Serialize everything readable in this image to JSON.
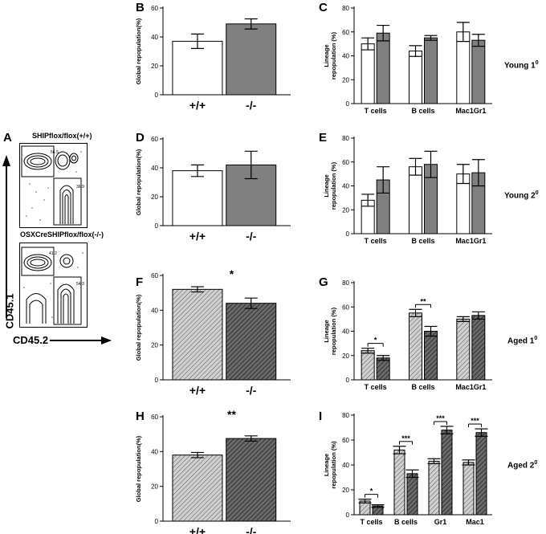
{
  "colors": {
    "wt": "#ffffff",
    "ko": "#808080",
    "aged_wt": "#c8c8c8",
    "aged_ko": "#585858",
    "stroke": "#000000"
  },
  "flow": {
    "label": "A",
    "top_title": "SHIPflox/flox(+/+)",
    "bottom_title": "OSXCreSHIPflox/flox(-/-)",
    "top_gates": [
      "56.5",
      "36.9"
    ],
    "bottom_gates": [
      "41.2",
      "54.3"
    ],
    "y_axis": "CD45.1",
    "x_axis": "CD45.2"
  },
  "side_labels": {
    "young1": "Young 1",
    "young2": "Young 2",
    "aged1": "Aged 1",
    "aged2": "Aged 2",
    "superscript": "0"
  },
  "chart_data": [
    {
      "id": "B",
      "type": "bar",
      "title": "",
      "ylabel": "Global repopulation(%)",
      "xlabel": "",
      "ylim": [
        0,
        60
      ],
      "yticks": [
        0,
        20,
        40,
        60
      ],
      "categories": [
        "+/+",
        "-/-"
      ],
      "values": [
        37,
        49
      ],
      "errors": [
        5,
        3.5
      ],
      "fill": [
        "wt",
        "ko"
      ],
      "significance": ""
    },
    {
      "id": "C",
      "type": "bar",
      "title": "",
      "ylabel": "Lineage repopulation (%)",
      "xlabel": "",
      "ylim": [
        0,
        80
      ],
      "yticks": [
        0,
        20,
        40,
        60,
        80
      ],
      "categories": [
        "T cells",
        "B cells",
        "Mac1Gr1"
      ],
      "series": [
        {
          "name": "+/+",
          "fill": "wt",
          "values": [
            50,
            44,
            60
          ],
          "errors": [
            5,
            4.5,
            8
          ]
        },
        {
          "name": "-/-",
          "fill": "ko",
          "values": [
            59,
            55,
            53
          ],
          "errors": [
            6.5,
            2,
            5
          ]
        }
      ],
      "brackets": []
    },
    {
      "id": "D",
      "type": "bar",
      "title": "",
      "ylabel": "Global repopulation(%)",
      "xlabel": "",
      "ylim": [
        0,
        60
      ],
      "yticks": [
        0,
        20,
        40,
        60
      ],
      "categories": [
        "+/+",
        "-/-"
      ],
      "values": [
        38,
        42
      ],
      "errors": [
        4,
        9.5
      ],
      "fill": [
        "wt",
        "ko"
      ],
      "significance": ""
    },
    {
      "id": "E",
      "type": "bar",
      "title": "",
      "ylabel": "Lineage repopulation (%)",
      "xlabel": "",
      "ylim": [
        0,
        80
      ],
      "yticks": [
        0,
        20,
        40,
        60,
        80
      ],
      "categories": [
        "T cells",
        "B cells",
        "Mac1Gr1"
      ],
      "series": [
        {
          "name": "+/+",
          "fill": "wt",
          "values": [
            28,
            56,
            50
          ],
          "errors": [
            5,
            7,
            8
          ]
        },
        {
          "name": "-/-",
          "fill": "ko",
          "values": [
            45,
            58,
            51
          ],
          "errors": [
            11,
            11,
            11
          ]
        }
      ],
      "brackets": []
    },
    {
      "id": "F",
      "type": "bar",
      "title": "",
      "ylabel": "Global repopulation(%)",
      "xlabel": "",
      "ylim": [
        0,
        60
      ],
      "yticks": [
        0,
        20,
        40,
        60
      ],
      "categories": [
        "+/+",
        "-/-"
      ],
      "values": [
        52,
        44
      ],
      "errors": [
        1.5,
        3
      ],
      "fill": [
        "aged_wt",
        "aged_ko"
      ],
      "significance": "*"
    },
    {
      "id": "G",
      "type": "bar",
      "title": "",
      "ylabel": "Lineage repopulation (%)",
      "xlabel": "",
      "ylim": [
        0,
        80
      ],
      "yticks": [
        0,
        20,
        40,
        60,
        80
      ],
      "categories": [
        "T cells",
        "B cells",
        "Mac1Gr1"
      ],
      "series": [
        {
          "name": "+/+",
          "fill": "aged_wt",
          "values": [
            24,
            55,
            50
          ],
          "errors": [
            2,
            3,
            2
          ]
        },
        {
          "name": "-/-",
          "fill": "aged_ko",
          "values": [
            18,
            40,
            53
          ],
          "errors": [
            2,
            4,
            3
          ]
        }
      ],
      "brackets": [
        {
          "group": 0,
          "label": "*"
        },
        {
          "group": 1,
          "label": "**"
        }
      ]
    },
    {
      "id": "H",
      "type": "bar",
      "title": "",
      "ylabel": "Global repopulation(%)",
      "xlabel": "",
      "ylim": [
        0,
        60
      ],
      "yticks": [
        0,
        20,
        40,
        60
      ],
      "categories": [
        "+/+",
        "-/-"
      ],
      "values": [
        38,
        47.5
      ],
      "errors": [
        1.5,
        1.5
      ],
      "fill": [
        "aged_wt",
        "aged_ko"
      ],
      "significance": "**"
    },
    {
      "id": "I",
      "type": "bar",
      "title": "",
      "ylabel": "Lineage repopulation (%)",
      "xlabel": "",
      "ylim": [
        0,
        80
      ],
      "yticks": [
        0,
        20,
        40,
        60,
        80
      ],
      "categories": [
        "T cells",
        "B cells",
        "Gr1",
        "Mac1"
      ],
      "series": [
        {
          "name": "+/+",
          "fill": "aged_wt",
          "values": [
            11,
            52,
            43,
            42
          ],
          "errors": [
            1.5,
            3,
            2,
            2
          ]
        },
        {
          "name": "-/-",
          "fill": "aged_ko",
          "values": [
            7,
            33,
            68,
            66
          ],
          "errors": [
            1,
            3,
            3,
            3
          ]
        }
      ],
      "brackets": [
        {
          "group": 0,
          "label": "*"
        },
        {
          "group": 1,
          "label": "***"
        },
        {
          "group": 2,
          "label": "***"
        },
        {
          "group": 3,
          "label": "***"
        }
      ]
    }
  ]
}
